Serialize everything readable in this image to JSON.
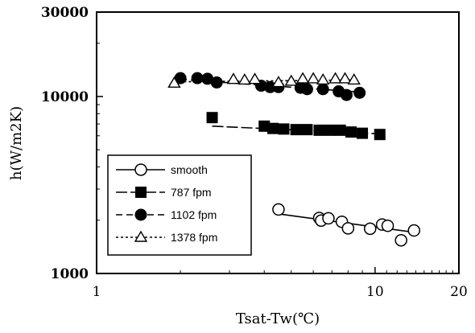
{
  "chart_data": {
    "type": "scatter",
    "xlabel": "Tsat-Tw(℃)",
    "ylabel": "h(W/m2K)",
    "xscale": "log",
    "yscale": "log",
    "xlim": [
      1,
      20
    ],
    "ylim": [
      1000,
      30000
    ],
    "x_ticks": [
      {
        "value": 1,
        "label": "1"
      },
      {
        "value": 10,
        "label": "10"
      },
      {
        "value": 20,
        "label": "20"
      }
    ],
    "y_ticks": [
      {
        "value": 1000,
        "label": "1000"
      },
      {
        "value": 10000,
        "label": "10000"
      },
      {
        "value": 30000,
        "label": "30000"
      }
    ],
    "grid": false,
    "legend_position": "bottom-left",
    "series": [
      {
        "name": "smooth",
        "marker": "circle-open",
        "line": "solid",
        "points": [
          [
            4.5,
            2300
          ],
          [
            6.3,
            2060
          ],
          [
            6.4,
            1990
          ],
          [
            6.8,
            2050
          ],
          [
            7.6,
            1960
          ],
          [
            8.0,
            1800
          ],
          [
            9.6,
            1790
          ],
          [
            10.6,
            1890
          ],
          [
            11.1,
            1860
          ],
          [
            12.4,
            1540
          ],
          [
            13.8,
            1750
          ]
        ],
        "fit": [
          [
            4.5,
            2170
          ],
          [
            13.8,
            1710
          ]
        ]
      },
      {
        "name": "787 fpm",
        "marker": "square-filled",
        "line": "long-dash",
        "points": [
          [
            2.6,
            7600
          ],
          [
            4.0,
            6800
          ],
          [
            4.3,
            6600
          ],
          [
            4.7,
            6550
          ],
          [
            5.2,
            6500
          ],
          [
            5.7,
            6500
          ],
          [
            6.3,
            6450
          ],
          [
            6.9,
            6450
          ],
          [
            7.5,
            6450
          ],
          [
            8.2,
            6300
          ],
          [
            9.0,
            6200
          ],
          [
            10.4,
            6100
          ]
        ],
        "fit": [
          [
            2.6,
            6800
          ],
          [
            10.4,
            6150
          ]
        ]
      },
      {
        "name": "1102 fpm",
        "marker": "circle-filled",
        "line": "dash",
        "points": [
          [
            2.0,
            12700
          ],
          [
            2.3,
            12700
          ],
          [
            2.5,
            12600
          ],
          [
            2.7,
            12000
          ],
          [
            3.9,
            11500
          ],
          [
            4.2,
            11300
          ],
          [
            4.5,
            11300
          ],
          [
            5.4,
            11200
          ],
          [
            5.7,
            11000
          ],
          [
            6.5,
            11000
          ],
          [
            7.4,
            10700
          ],
          [
            7.9,
            10200
          ],
          [
            8.8,
            10500
          ]
        ],
        "fit": [
          [
            2.0,
            12500
          ],
          [
            8.8,
            10600
          ]
        ]
      },
      {
        "name": "1378 fpm",
        "marker": "triangle-open",
        "line": "dot",
        "points": [
          [
            1.9,
            11900
          ],
          [
            3.1,
            12500
          ],
          [
            3.4,
            12400
          ],
          [
            3.7,
            12500
          ],
          [
            4.5,
            12000
          ],
          [
            5.0,
            12200
          ],
          [
            5.5,
            12600
          ],
          [
            6.0,
            12600
          ],
          [
            6.5,
            12400
          ],
          [
            7.2,
            12600
          ],
          [
            7.8,
            12600
          ],
          [
            8.4,
            12400
          ]
        ],
        "fit": [
          [
            1.9,
            12100
          ],
          [
            8.4,
            12400
          ]
        ]
      }
    ]
  }
}
